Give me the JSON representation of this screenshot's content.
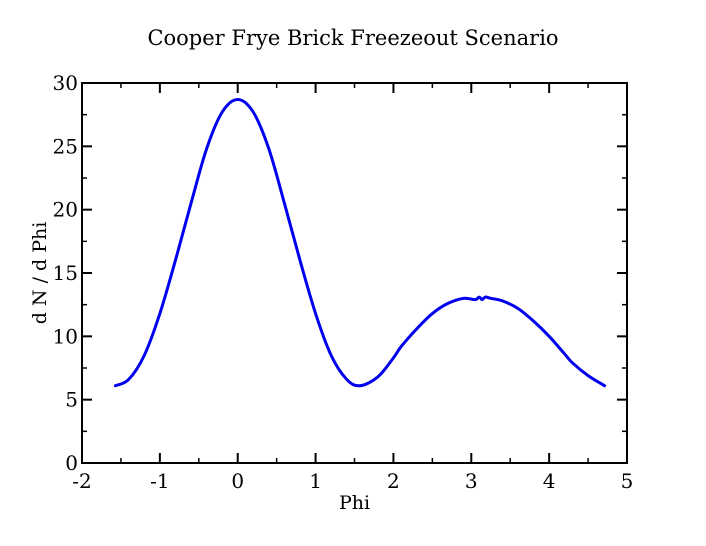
{
  "chart_data": {
    "type": "line",
    "title": "Cooper Frye Brick Freezeout Scenario",
    "xlabel": "Phi",
    "ylabel": "d N / d Phi",
    "xlim": [
      -2,
      5
    ],
    "ylim": [
      0,
      30
    ],
    "xticks": [
      "-2",
      "-1",
      "0",
      "1",
      "2",
      "3",
      "4",
      "5"
    ],
    "yticks": [
      "0",
      "5",
      "10",
      "15",
      "20",
      "25",
      "30"
    ],
    "grid": false,
    "series": [
      {
        "color": "#0000ee",
        "x": [
          -1.571,
          -1.4,
          -1.2,
          -1.0,
          -0.8,
          -0.6,
          -0.4,
          -0.2,
          0.0,
          0.2,
          0.4,
          0.6,
          0.8,
          1.0,
          1.2,
          1.4,
          1.571,
          1.8,
          2.0,
          2.1,
          2.3,
          2.5,
          2.7,
          2.9,
          3.05,
          3.1,
          3.14,
          3.18,
          3.25,
          3.4,
          3.6,
          3.8,
          4.0,
          4.2,
          4.3,
          4.5,
          4.712
        ],
        "y": [
          6.1,
          6.6,
          8.5,
          11.8,
          16.0,
          20.5,
          24.8,
          27.7,
          28.7,
          27.7,
          24.8,
          20.5,
          16.0,
          11.8,
          8.5,
          6.6,
          6.1,
          6.8,
          8.3,
          9.2,
          10.6,
          11.8,
          12.6,
          13.0,
          12.9,
          13.1,
          12.9,
          13.1,
          13.0,
          12.8,
          12.2,
          11.2,
          10.0,
          8.6,
          7.9,
          6.9,
          6.1
        ]
      }
    ]
  }
}
